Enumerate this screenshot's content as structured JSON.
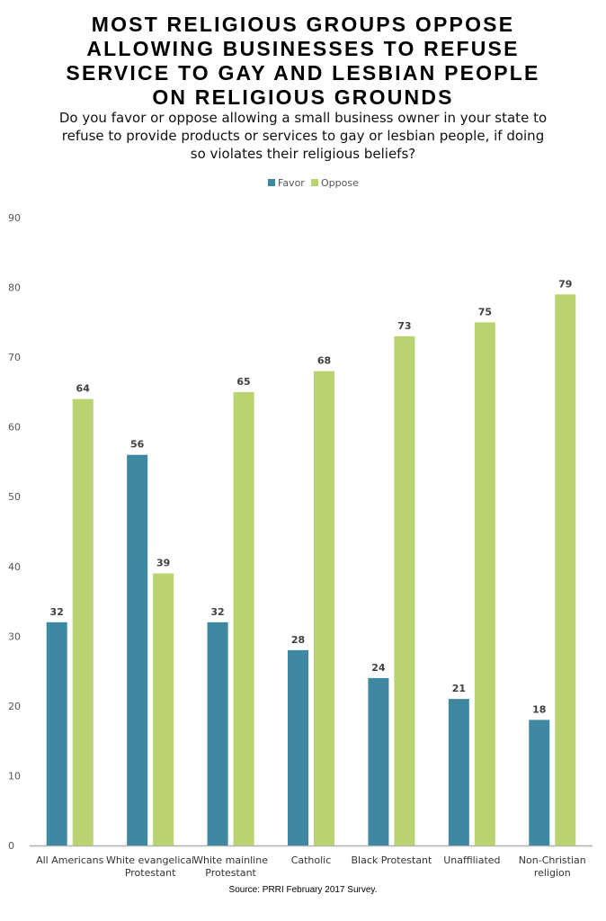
{
  "title": "MOST RELIGIOUS GROUPS OPPOSE\nALLOWING BUSINESSES TO REFUSE\nSERVICE TO GAY AND LESBIAN PEOPLE\nON RELIGIOUS GROUNDS",
  "subtitle": "Do you favor or oppose allowing a small business owner in your state to refuse to provide products or services to gay or lesbian people, if doing so violates their religious beliefs?",
  "source": "Source: PRRI February 2017 Survey.",
  "colors": {
    "favor": "#3e89a1",
    "oppose": "#b8d36f",
    "axis": "#b0b0b0",
    "tick_text": "#555555",
    "label_text": "#404040"
  },
  "chart_data": {
    "type": "bar",
    "categories": [
      [
        "All Americans"
      ],
      [
        "White evangelical",
        "Protestant"
      ],
      [
        "White mainline",
        "Protestant"
      ],
      [
        "Catholic"
      ],
      [
        "Black Protestant"
      ],
      [
        "Unaffiliated"
      ],
      [
        "Non-Christian",
        "religion"
      ]
    ],
    "series": [
      {
        "name": "Favor",
        "values": [
          32,
          56,
          32,
          28,
          24,
          21,
          18
        ]
      },
      {
        "name": "Oppose",
        "values": [
          64,
          39,
          65,
          68,
          73,
          75,
          79
        ]
      }
    ],
    "ylim": [
      0,
      90
    ],
    "yticks": [
      0,
      10,
      20,
      30,
      40,
      50,
      60,
      70,
      80,
      90
    ],
    "grid": false,
    "legend": "top-center",
    "data_labels": true
  }
}
